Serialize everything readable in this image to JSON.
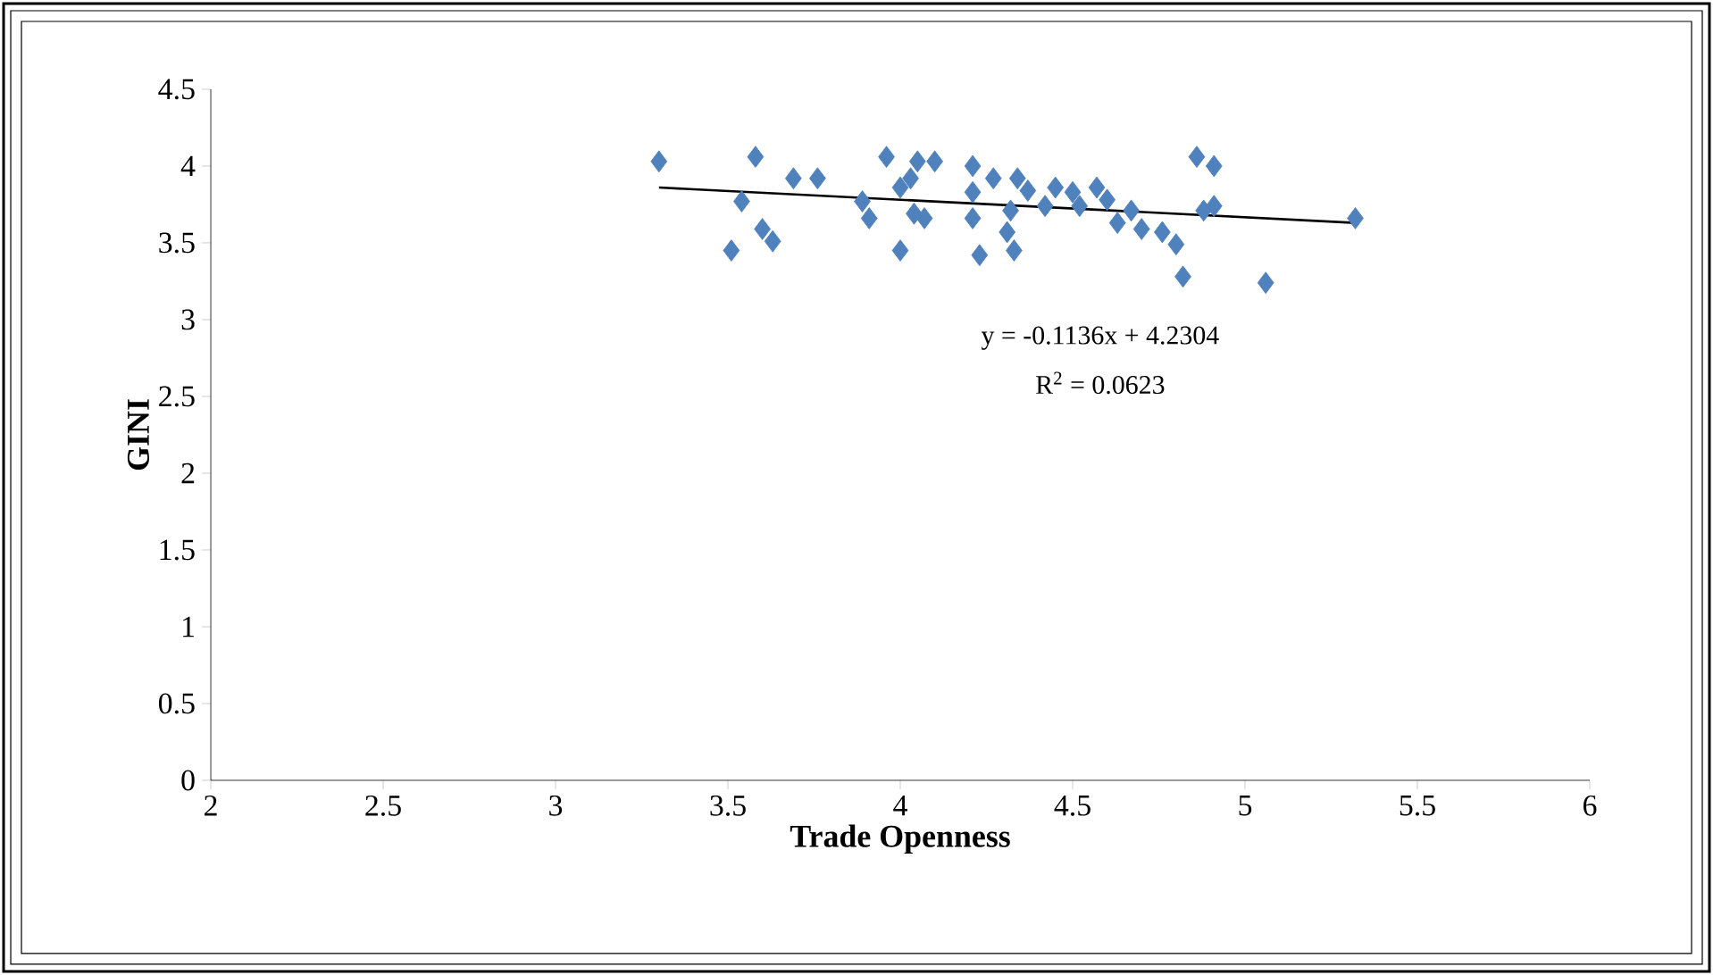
{
  "chart_data": {
    "type": "scatter",
    "xlabel": "Trade Openness",
    "ylabel": "GINI",
    "xlim": [
      2,
      6
    ],
    "xticks": [
      2,
      2.5,
      3,
      3.5,
      4,
      4.5,
      5,
      5.5,
      6
    ],
    "ylim": [
      0,
      4.5
    ],
    "yticks": [
      0,
      0.5,
      1,
      1.5,
      2,
      2.5,
      3,
      3.5,
      4,
      4.5
    ],
    "annotations": [
      "y = -0.1136x + 4.2304",
      "R$^{2}$ = 0.0623"
    ],
    "series": [
      {
        "color": "#4f81bd",
        "marker": "diamond",
        "x": [
          3.3,
          3.58,
          3.54,
          3.51,
          3.6,
          3.63,
          3.69,
          3.76,
          3.89,
          3.91,
          3.96,
          4.0,
          4.0,
          4.03,
          4.05,
          4.1,
          4.04,
          4.07,
          4.21,
          4.21,
          4.21,
          4.23,
          4.27,
          4.32,
          4.34,
          4.37,
          4.33,
          4.31,
          4.42,
          4.45,
          4.5,
          4.52,
          4.57,
          4.6,
          4.63,
          4.67,
          4.7,
          4.76,
          4.8,
          4.82,
          4.86,
          4.91,
          4.88,
          4.91,
          5.06,
          5.32
        ],
        "values": [
          4.03,
          4.06,
          3.77,
          3.45,
          3.59,
          3.51,
          3.92,
          3.92,
          3.77,
          3.66,
          4.06,
          3.45,
          3.86,
          3.92,
          4.03,
          4.03,
          3.69,
          3.66,
          4.0,
          3.83,
          3.66,
          3.42,
          3.92,
          3.71,
          3.92,
          3.84,
          3.45,
          3.57,
          3.74,
          3.86,
          3.83,
          3.74,
          3.86,
          3.78,
          3.63,
          3.71,
          3.59,
          3.57,
          3.49,
          3.28,
          4.06,
          4.0,
          3.71,
          3.74,
          3.24,
          3.66
        ]
      },
      {
        "type": "line",
        "marker": "none",
        "color": "#000000",
        "x": [
          3.3,
          5.32
        ],
        "values": [
          3.86,
          3.63
        ]
      }
    ]
  }
}
